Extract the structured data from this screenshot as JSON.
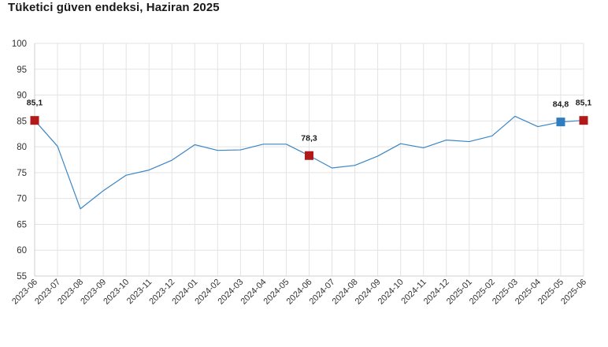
{
  "chart_data": {
    "type": "line",
    "title": "Tüketici güven endeksi, Haziran 2025",
    "xlabel": "",
    "ylabel": "",
    "ylim": [
      55,
      100
    ],
    "yticks": [
      55,
      60,
      65,
      70,
      75,
      80,
      85,
      90,
      95,
      100
    ],
    "grid": true,
    "categories": [
      "2023-06",
      "2023-07",
      "2023-08",
      "2023-09",
      "2023-10",
      "2023-11",
      "2023-12",
      "2024-01",
      "2024-02",
      "2024-03",
      "2024-04",
      "2024-05",
      "2024-06",
      "2024-07",
      "2024-08",
      "2024-09",
      "2024-10",
      "2024-11",
      "2024-12",
      "2025-01",
      "2025-02",
      "2025-03",
      "2025-04",
      "2025-05",
      "2025-06"
    ],
    "series": [
      {
        "values": [
          85.1,
          80.1,
          68.0,
          71.5,
          74.5,
          75.5,
          77.4,
          80.4,
          79.3,
          79.4,
          80.5,
          80.5,
          78.3,
          75.9,
          76.4,
          78.2,
          80.6,
          79.8,
          81.3,
          81.0,
          82.1,
          85.9,
          83.9,
          84.8,
          85.1
        ],
        "color": "#3a86c6"
      }
    ],
    "highlights": [
      {
        "category": "2023-06",
        "value": 85.1,
        "label": "85,1",
        "color": "#b21a1a"
      },
      {
        "category": "2024-06",
        "value": 78.3,
        "label": "78,3",
        "color": "#b21a1a"
      },
      {
        "category": "2025-05",
        "value": 84.8,
        "label": "84,8",
        "color": "#2f7cc0"
      },
      {
        "category": "2025-06",
        "value": 85.1,
        "label": "85,1",
        "color": "#b21a1a"
      }
    ]
  }
}
